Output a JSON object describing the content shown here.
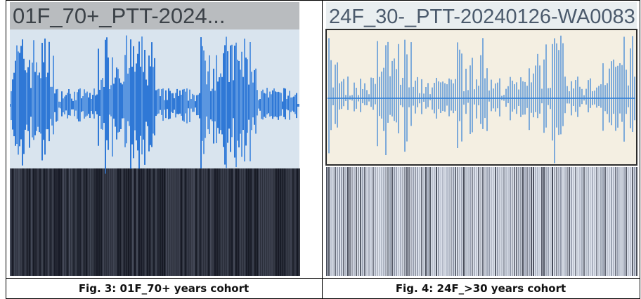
{
  "figures": [
    {
      "screen_title": "01F_70+_PTT-2024...",
      "caption": "Fig. 3: 01F_70+ years cohort"
    },
    {
      "screen_title": "24F_30-_PTT-20240126-WA0083",
      "caption": "Fig. 4: 24F_>30 years cohort"
    }
  ]
}
